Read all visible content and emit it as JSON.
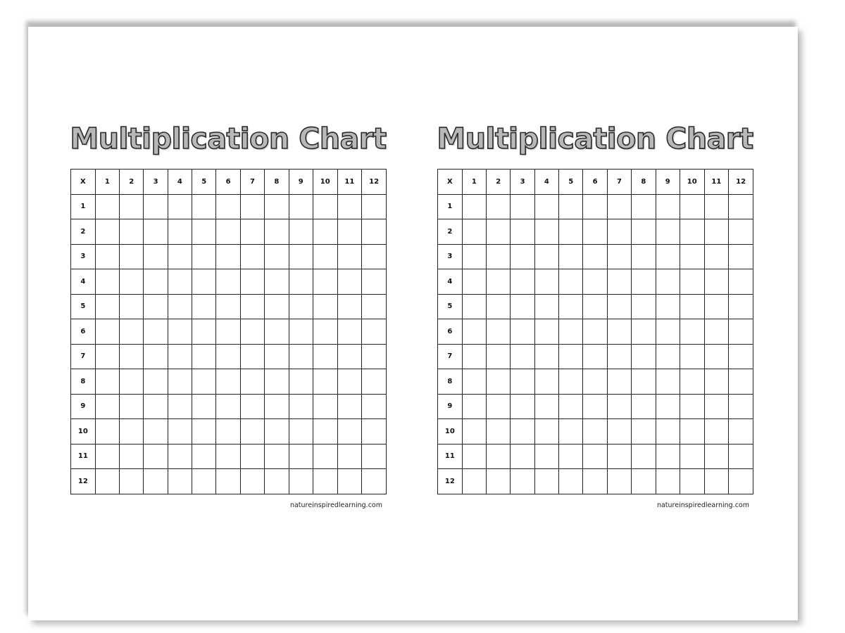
{
  "sheets": [
    {
      "title": "Multiplication Chart",
      "corner": "X",
      "column_headers": [
        "1",
        "2",
        "3",
        "4",
        "5",
        "6",
        "7",
        "8",
        "9",
        "10",
        "11",
        "12"
      ],
      "row_headers": [
        "1",
        "2",
        "3",
        "4",
        "5",
        "6",
        "7",
        "8",
        "9",
        "10",
        "11",
        "12"
      ],
      "footer": "natureinspiredlearning.com"
    },
    {
      "title": "Multiplication Chart",
      "corner": "X",
      "column_headers": [
        "1",
        "2",
        "3",
        "4",
        "5",
        "6",
        "7",
        "8",
        "9",
        "10",
        "11",
        "12"
      ],
      "row_headers": [
        "1",
        "2",
        "3",
        "4",
        "5",
        "6",
        "7",
        "8",
        "9",
        "10",
        "11",
        "12"
      ],
      "footer": "natureinspiredlearning.com"
    }
  ],
  "colors": {
    "grid": "#222222",
    "title_fill": "#b8b8b8",
    "title_outline": "#2a2a2a"
  }
}
